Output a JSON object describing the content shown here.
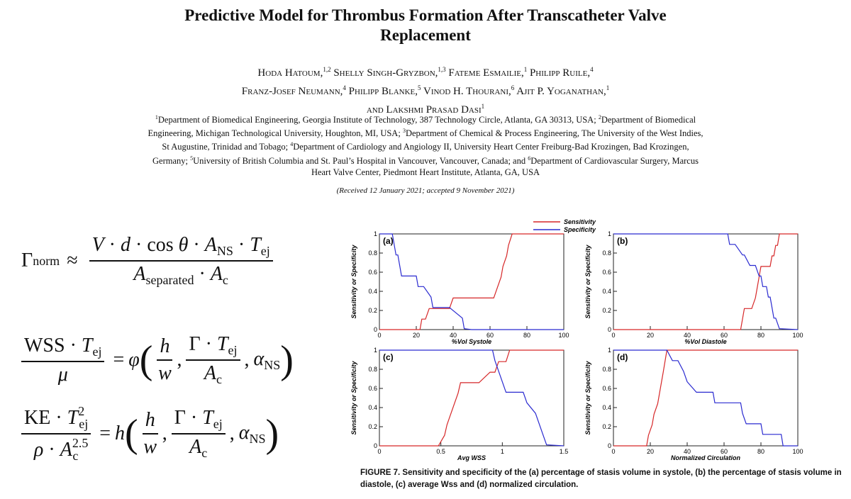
{
  "paper": {
    "title": "Predictive Model for Thrombus Formation After Transcatheter Valve Replacement",
    "authors": [
      {
        "name": "Hoda Hatoum,",
        "sup": "1,2"
      },
      {
        "name": "Shelly Singh-Gryzbon,",
        "sup": "1,3"
      },
      {
        "name": "Fateme Esmailie,",
        "sup": "1"
      },
      {
        "name": "Philipp Ruile,",
        "sup": "4"
      },
      {
        "name": "Franz-Josef Neumann,",
        "sup": "4"
      },
      {
        "name": "Philipp Blanke,",
        "sup": "5"
      },
      {
        "name": "Vinod H. Thourani,",
        "sup": "6"
      },
      {
        "name": "Ajit P. Yoganathan,",
        "sup": "1"
      },
      {
        "name": "and Lakshmi Prasad Dasi",
        "sup": "1"
      }
    ],
    "affiliations": [
      {
        "sup": "1",
        "text": "Department of Biomedical Engineering, Georgia Institute of Technology, 387 Technology Circle, Atlanta, GA 30313, USA;"
      },
      {
        "sup": "2",
        "text": "Department of Biomedical Engineering, Michigan Technological University, Houghton, MI, USA;"
      },
      {
        "sup": "3",
        "text": "Department of Chemical & Process Engineering, The University of the West Indies, St Augustine, Trinidad and Tobago;"
      },
      {
        "sup": "4",
        "text": "Department of Cardiology and Angiology II, University Heart Center Freiburg-Bad Krozingen, Bad Krozingen, Germany;"
      },
      {
        "sup": "5",
        "text": "University of British Columbia and St. Paul’s Hospital in Vancouver, Vancouver, Canada; and"
      },
      {
        "sup": "6",
        "text": "Department of Cardiovascular Surgery, Marcus Heart Valve Center, Piedmont Heart Institute, Atlanta, GA, USA"
      }
    ],
    "received": "(Received 12 January 2021; accepted 9 November 2021)"
  },
  "equations": {
    "eq1": {
      "lhs": "Γ",
      "lhs_sub": "norm",
      "rel": "≈"
    },
    "eq2": {
      "rhs_func": "φ"
    },
    "eq3": {
      "rhs_func": "h",
      "exp": "2.5"
    }
  },
  "figure": {
    "caption": "FIGURE 7.   Sensitivity and specificity of the (a) percentage of stasis volume in systole, (b) the percentage of stasis volume in diastole, (c) average Wss and (d) normalized circulation.",
    "legend": [
      {
        "label": "Sensitivity",
        "color": "#d62728"
      },
      {
        "label": "Specificity",
        "color": "#2a2ad0"
      }
    ]
  },
  "chart_data": [
    {
      "type": "line",
      "panel": "(a)",
      "xlabel": "%Vol Systole",
      "ylabel": "Sensitivity or Specificity",
      "xlim": [
        0,
        100
      ],
      "ylim": [
        0,
        1
      ],
      "xticks": [
        "0",
        "20",
        "40",
        "60",
        "80",
        "100"
      ],
      "yticks": [
        "0",
        "0.2",
        "0.4",
        "0.6",
        "0.8",
        "1"
      ],
      "series": [
        {
          "name": "Sensitivity",
          "color": "#d62728",
          "x": [
            0,
            22,
            23,
            25,
            27,
            29,
            31,
            33,
            35,
            38,
            40,
            62,
            64,
            66,
            67,
            69,
            70,
            72,
            100
          ],
          "y": [
            0,
            0,
            0.11,
            0.11,
            0.22,
            0.22,
            0.22,
            0.22,
            0.22,
            0.22,
            0.33,
            0.33,
            0.44,
            0.55,
            0.66,
            0.77,
            0.88,
            1,
            1
          ]
        },
        {
          "name": "Specificity",
          "color": "#2a2ad0",
          "x": [
            0,
            7,
            8,
            9,
            10,
            11,
            12,
            13,
            20,
            21,
            24,
            28,
            29,
            33,
            38,
            45,
            46,
            50,
            100
          ],
          "y": [
            1,
            1,
            0.89,
            0.78,
            0.78,
            0.67,
            0.56,
            0.56,
            0.56,
            0.45,
            0.45,
            0.34,
            0.23,
            0.23,
            0.23,
            0.12,
            0.01,
            0,
            0
          ]
        }
      ]
    },
    {
      "type": "line",
      "panel": "(b)",
      "xlabel": "%Vol Diastole",
      "ylabel": "Sensitivity or Specificity",
      "xlim": [
        0,
        100
      ],
      "ylim": [
        0,
        1
      ],
      "xticks": [
        "0",
        "20",
        "40",
        "60",
        "80",
        "100"
      ],
      "yticks": [
        "0",
        "0.2",
        "0.4",
        "0.6",
        "0.8",
        "1"
      ],
      "series": [
        {
          "name": "Sensitivity",
          "color": "#d62728",
          "x": [
            0,
            69,
            71,
            75,
            77,
            78,
            79,
            80,
            85,
            86,
            87,
            88,
            89,
            90,
            91,
            100
          ],
          "y": [
            0,
            0,
            0.22,
            0.22,
            0.33,
            0.44,
            0.55,
            0.66,
            0.66,
            0.77,
            0.77,
            0.88,
            0.88,
            1,
            1,
            1
          ]
        },
        {
          "name": "Specificity",
          "color": "#2a2ad0",
          "x": [
            0,
            62,
            63,
            66,
            70,
            71,
            74,
            77,
            79,
            80,
            81,
            83,
            84,
            85,
            86,
            87,
            88,
            90,
            100
          ],
          "y": [
            1,
            1,
            0.89,
            0.89,
            0.78,
            0.78,
            0.67,
            0.67,
            0.56,
            0.56,
            0.45,
            0.45,
            0.34,
            0.34,
            0.23,
            0.12,
            0.12,
            0.01,
            0
          ]
        }
      ]
    },
    {
      "type": "line",
      "panel": "(c)",
      "xlabel": "Avg WSS",
      "ylabel": "Sensitivity or Specificity",
      "xlim": [
        0,
        1.5
      ],
      "ylim": [
        0,
        1
      ],
      "xticks": [
        "0",
        "0.5",
        "1",
        "1.5"
      ],
      "yticks": [
        "0",
        "0.2",
        "0.4",
        "0.6",
        "0.8",
        "1"
      ],
      "series": [
        {
          "name": "Sensitivity",
          "color": "#d62728",
          "x": [
            0,
            0.48,
            0.53,
            0.55,
            0.58,
            0.61,
            0.64,
            0.66,
            0.81,
            0.9,
            0.94,
            0.97,
            1.03,
            1.06,
            1.5
          ],
          "y": [
            0,
            0,
            0.11,
            0.22,
            0.33,
            0.44,
            0.55,
            0.66,
            0.66,
            0.77,
            0.77,
            0.88,
            0.88,
            1,
            1
          ]
        },
        {
          "name": "Specificity",
          "color": "#2a2ad0",
          "x": [
            0,
            0.92,
            0.94,
            0.97,
            1.0,
            1.03,
            1.17,
            1.2,
            1.27,
            1.3,
            1.33,
            1.36,
            1.5
          ],
          "y": [
            1,
            1,
            0.89,
            0.78,
            0.67,
            0.56,
            0.56,
            0.45,
            0.34,
            0.23,
            0.12,
            0.01,
            0
          ]
        }
      ]
    },
    {
      "type": "line",
      "panel": "(d)",
      "xlabel": "Normalized Circulation",
      "ylabel": "Sensitivity or Specificity",
      "xlim": [
        0,
        100
      ],
      "ylim": [
        0,
        1
      ],
      "xticks": [
        "0",
        "20",
        "40",
        "60",
        "80",
        "100"
      ],
      "yticks": [
        "0",
        "0.2",
        "0.4",
        "0.6",
        "0.8",
        "1"
      ],
      "series": [
        {
          "name": "Sensitivity",
          "color": "#d62728",
          "x": [
            0,
            18,
            19,
            21,
            22,
            24,
            26,
            27,
            29,
            100
          ],
          "y": [
            0,
            0,
            0.11,
            0.22,
            0.33,
            0.44,
            0.66,
            0.77,
            1,
            1
          ]
        },
        {
          "name": "Specificity",
          "color": "#2a2ad0",
          "x": [
            0,
            29,
            32,
            35,
            38,
            40,
            45,
            54,
            55,
            69,
            70,
            72,
            73,
            80,
            81,
            86,
            91,
            92,
            100
          ],
          "y": [
            1,
            1,
            0.89,
            0.89,
            0.78,
            0.67,
            0.56,
            0.56,
            0.45,
            0.45,
            0.34,
            0.23,
            0.23,
            0.23,
            0.12,
            0.12,
            0.12,
            0,
            0
          ]
        }
      ]
    }
  ]
}
